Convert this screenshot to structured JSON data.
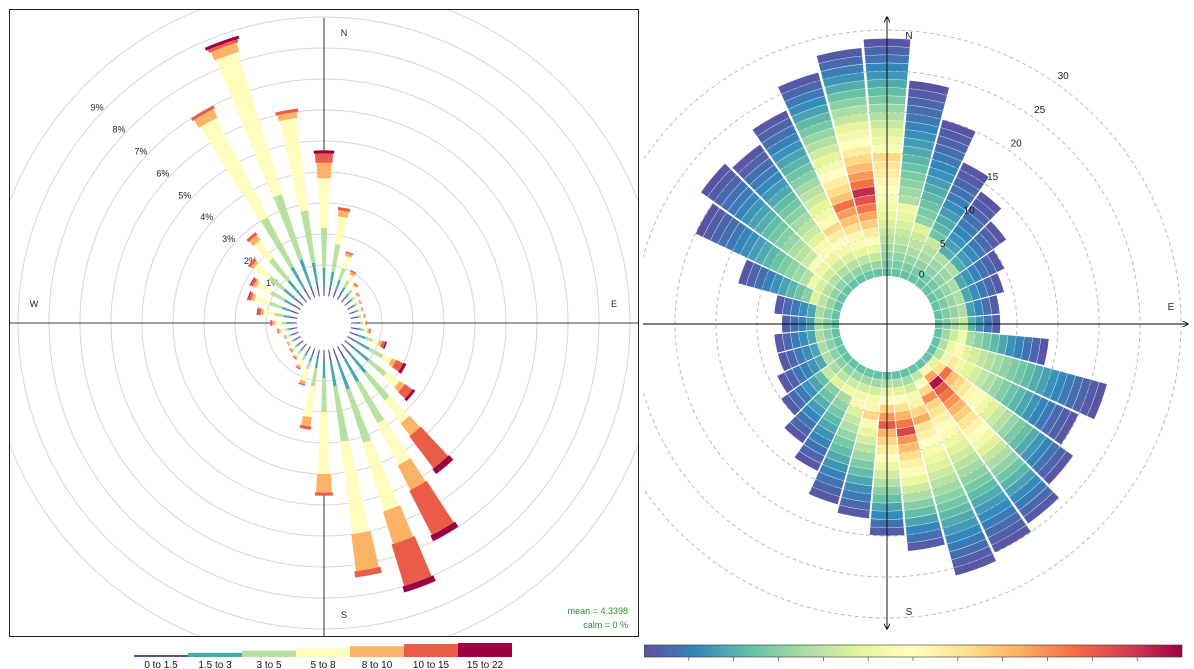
{
  "chart_data": [
    {
      "type": "polar-bar",
      "chart_id": "wind-rose",
      "compass": {
        "n": "N",
        "e": "E",
        "s": "S",
        "w": "W"
      },
      "radial_tick_labels": [
        "1%",
        "2%",
        "3%",
        "4%",
        "5%",
        "6%",
        "7%",
        "8%",
        "9%"
      ],
      "radial_max": 10,
      "bins": [
        "0 to 1.5",
        "1.5 to 3",
        "3 to 5",
        "5 to 8",
        "8 to 10",
        "10 to 15",
        "15 to 22"
      ],
      "bin_colors": [
        "#5e4fa2",
        "#46a8b0",
        "#b8e1a0",
        "#fefdbd",
        "#fdb366",
        "#e95c47",
        "#9e0142"
      ],
      "angle_step_deg": 10,
      "spokes": [
        {
          "dir": 0,
          "cum": [
            0.35,
            0.9,
            2.2,
            3.8,
            4.3,
            4.6,
            4.7
          ]
        },
        {
          "dir": 10,
          "cum": [
            0.35,
            0.8,
            1.7,
            2.6,
            2.8,
            2.9,
            2.9
          ]
        },
        {
          "dir": 20,
          "cum": [
            0.3,
            0.6,
            1.0,
            1.4,
            1.5,
            1.55,
            1.55
          ]
        },
        {
          "dir": 30,
          "cum": [
            0.28,
            0.45,
            0.7,
            0.9,
            1.0,
            1.05,
            1.05
          ]
        },
        {
          "dir": 40,
          "cum": [
            0.25,
            0.35,
            0.5,
            0.65,
            0.72,
            0.76,
            0.76
          ]
        },
        {
          "dir": 50,
          "cum": [
            0.22,
            0.3,
            0.4,
            0.5,
            0.55,
            0.58,
            0.58
          ]
        },
        {
          "dir": 60,
          "cum": [
            0.2,
            0.28,
            0.36,
            0.44,
            0.48,
            0.5,
            0.5
          ]
        },
        {
          "dir": 70,
          "cum": [
            0.2,
            0.27,
            0.34,
            0.4,
            0.44,
            0.46,
            0.46
          ]
        },
        {
          "dir": 80,
          "cum": [
            0.2,
            0.27,
            0.34,
            0.42,
            0.46,
            0.48,
            0.48
          ]
        },
        {
          "dir": 90,
          "cum": [
            0.22,
            0.3,
            0.38,
            0.46,
            0.5,
            0.52,
            0.52
          ]
        },
        {
          "dir": 100,
          "cum": [
            0.25,
            0.35,
            0.45,
            0.55,
            0.62,
            0.66,
            0.66
          ]
        },
        {
          "dir": 110,
          "cum": [
            0.3,
            0.55,
            0.8,
            1.0,
            1.1,
            1.2,
            1.25
          ]
        },
        {
          "dir": 120,
          "cum": [
            0.35,
            0.8,
            1.3,
            1.6,
            1.75,
            2.0,
            2.1
          ]
        },
        {
          "dir": 130,
          "cum": [
            0.4,
            1.0,
            1.7,
            2.2,
            2.4,
            2.7,
            2.8
          ]
        },
        {
          "dir": 140,
          "cum": [
            0.45,
            1.2,
            2.3,
            3.2,
            3.7,
            5.0,
            5.2
          ]
        },
        {
          "dir": 150,
          "cum": [
            0.45,
            1.3,
            2.8,
            4.3,
            5.2,
            6.8,
            7.0
          ]
        },
        {
          "dir": 160,
          "cum": [
            0.45,
            1.4,
            3.2,
            5.5,
            6.6,
            8.0,
            8.2
          ]
        },
        {
          "dir": 170,
          "cum": [
            0.4,
            1.2,
            3.0,
            6.0,
            7.2,
            7.4,
            7.4
          ]
        },
        {
          "dir": 180,
          "cum": [
            0.35,
            0.9,
            2.0,
            4.0,
            4.6,
            4.7,
            4.7
          ]
        },
        {
          "dir": 190,
          "cum": [
            0.3,
            0.6,
            1.2,
            2.2,
            2.5,
            2.6,
            2.6
          ]
        },
        {
          "dir": 200,
          "cum": [
            0.28,
            0.45,
            0.7,
            1.1,
            1.2,
            1.25,
            1.25
          ]
        },
        {
          "dir": 210,
          "cum": [
            0.25,
            0.35,
            0.5,
            0.7,
            0.78,
            0.82,
            0.82
          ]
        },
        {
          "dir": 220,
          "cum": [
            0.22,
            0.3,
            0.4,
            0.52,
            0.58,
            0.62,
            0.62
          ]
        },
        {
          "dir": 230,
          "cum": [
            0.2,
            0.28,
            0.36,
            0.45,
            0.5,
            0.53,
            0.53
          ]
        },
        {
          "dir": 240,
          "cum": [
            0.2,
            0.27,
            0.34,
            0.42,
            0.46,
            0.48,
            0.48
          ]
        },
        {
          "dir": 250,
          "cum": [
            0.2,
            0.27,
            0.34,
            0.42,
            0.46,
            0.48,
            0.48
          ]
        },
        {
          "dir": 260,
          "cum": [
            0.22,
            0.3,
            0.4,
            0.55,
            0.62,
            0.66,
            0.66
          ]
        },
        {
          "dir": 270,
          "cum": [
            0.25,
            0.35,
            0.5,
            0.7,
            0.8,
            0.86,
            0.86
          ]
        },
        {
          "dir": 280,
          "cum": [
            0.28,
            0.45,
            0.75,
            1.1,
            1.2,
            1.3,
            1.32
          ]
        },
        {
          "dir": 290,
          "cum": [
            0.3,
            0.55,
            1.0,
            1.5,
            1.6,
            1.7,
            1.72
          ]
        },
        {
          "dir": 300,
          "cum": [
            0.32,
            0.6,
            1.1,
            1.6,
            1.7,
            1.8,
            1.82
          ]
        },
        {
          "dir": 310,
          "cum": [
            0.35,
            0.8,
            1.4,
            2.0,
            2.1,
            2.2,
            2.2
          ]
        },
        {
          "dir": 320,
          "cum": [
            0.35,
            0.9,
            1.8,
            2.5,
            2.7,
            2.8,
            2.8
          ]
        },
        {
          "dir": 330,
          "cum": [
            0.4,
            1.2,
            3.0,
            6.6,
            6.9,
            7.0,
            7.0
          ]
        },
        {
          "dir": 340,
          "cum": [
            0.4,
            1.3,
            3.5,
            8.3,
            8.6,
            8.7,
            8.8
          ]
        },
        {
          "dir": 350,
          "cum": [
            0.38,
            1.1,
            2.8,
            5.8,
            6.0,
            6.1,
            6.1
          ]
        }
      ],
      "stats": {
        "mean_label": "mean",
        "mean_value": "= 4.3398",
        "calm_label": "calm",
        "calm_value": "=  0 %"
      }
    },
    {
      "type": "polar-heatmap",
      "chart_id": "polar-frequency",
      "compass": {
        "n": "N",
        "e": "E",
        "s": "S"
      },
      "radial_tick_labels": [
        "0",
        "5",
        "10",
        "15",
        "20",
        "25",
        "30"
      ],
      "radial_ticks": [
        0,
        5,
        10,
        15,
        20,
        25,
        30
      ],
      "inner_radius_value": 0,
      "max_radius_value": 32,
      "colormap": [
        "#5e4fa2",
        "#3288bd",
        "#66c2a5",
        "#abdda4",
        "#e6f598",
        "#ffffbf",
        "#fee08b",
        "#fdae61",
        "#f46d43",
        "#d53e4f",
        "#9e0142"
      ],
      "sector_step_deg": 10,
      "ring_step": 1,
      "sectors": [
        {
          "dir": 0,
          "max": 29,
          "peak": 14,
          "hot": 0.55
        },
        {
          "dir": 10,
          "max": 24,
          "peak": 8,
          "hot": 0.35
        },
        {
          "dir": 20,
          "max": 20,
          "peak": 6,
          "hot": 0.3
        },
        {
          "dir": 30,
          "max": 16,
          "peak": 5,
          "hot": 0.25
        },
        {
          "dir": 40,
          "max": 14,
          "peak": 4,
          "hot": 0.2
        },
        {
          "dir": 50,
          "max": 12,
          "peak": 4,
          "hot": 0.2
        },
        {
          "dir": 60,
          "max": 10,
          "peak": 3,
          "hot": 0.2
        },
        {
          "dir": 70,
          "max": 9,
          "peak": 3,
          "hot": 0.2
        },
        {
          "dir": 80,
          "max": 8,
          "peak": 3,
          "hot": 0.2
        },
        {
          "dir": 90,
          "max": 8,
          "peak": 3,
          "hot": 0.25
        },
        {
          "dir": 100,
          "max": 14,
          "peak": 3,
          "hot": 0.35
        },
        {
          "dir": 110,
          "max": 22,
          "peak": 3,
          "hot": 0.45
        },
        {
          "dir": 120,
          "max": 20,
          "peak": 3,
          "hot": 0.5
        },
        {
          "dir": 130,
          "max": 22,
          "peak": 3,
          "hot": 0.75
        },
        {
          "dir": 140,
          "max": 24,
          "peak": 3,
          "hot": 0.95
        },
        {
          "dir": 150,
          "max": 25,
          "peak": 4,
          "hot": 0.7
        },
        {
          "dir": 160,
          "max": 26,
          "peak": 6,
          "hot": 0.65
        },
        {
          "dir": 170,
          "max": 22,
          "peak": 7,
          "hot": 0.85
        },
        {
          "dir": 180,
          "max": 20,
          "peak": 6,
          "hot": 0.8
        },
        {
          "dir": 190,
          "max": 18,
          "peak": 5,
          "hot": 0.55
        },
        {
          "dir": 200,
          "max": 17,
          "peak": 4,
          "hot": 0.45
        },
        {
          "dir": 210,
          "max": 14,
          "peak": 3,
          "hot": 0.35
        },
        {
          "dir": 220,
          "max": 12,
          "peak": 3,
          "hot": 0.3
        },
        {
          "dir": 230,
          "max": 10,
          "peak": 3,
          "hot": 0.25
        },
        {
          "dir": 240,
          "max": 9,
          "peak": 2,
          "hot": 0.2
        },
        {
          "dir": 250,
          "max": 8,
          "peak": 2,
          "hot": 0.2
        },
        {
          "dir": 260,
          "max": 8,
          "peak": 2,
          "hot": 0.2
        },
        {
          "dir": 270,
          "max": 7,
          "peak": 2,
          "hot": 0.2
        },
        {
          "dir": 280,
          "max": 8,
          "peak": 2,
          "hot": 0.2
        },
        {
          "dir": 290,
          "max": 13,
          "peak": 3,
          "hot": 0.3
        },
        {
          "dir": 300,
          "max": 20,
          "peak": 4,
          "hot": 0.35
        },
        {
          "dir": 310,
          "max": 22,
          "peak": 5,
          "hot": 0.4
        },
        {
          "dir": 320,
          "max": 21,
          "peak": 6,
          "hot": 0.45
        },
        {
          "dir": 330,
          "max": 23,
          "peak": 7,
          "hot": 0.55
        },
        {
          "dir": 340,
          "max": 26,
          "peak": 9,
          "hot": 0.75
        },
        {
          "dir": 350,
          "max": 28,
          "peak": 10,
          "hot": 0.9
        }
      ]
    }
  ]
}
